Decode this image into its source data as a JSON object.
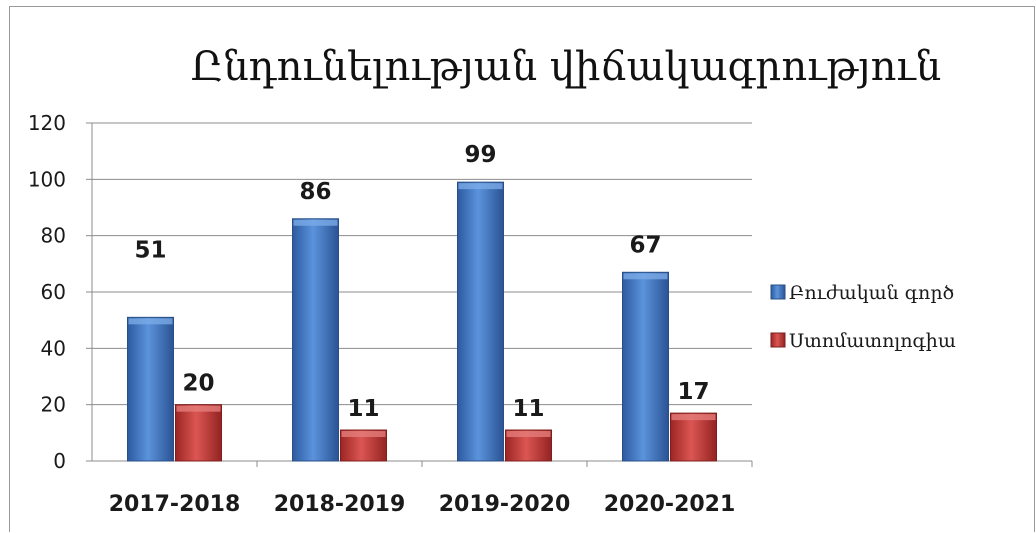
{
  "chart_data": {
    "type": "bar",
    "title": "Ընդունելության վիճակագրություն",
    "categories": [
      "2017-2018",
      "2018-2019",
      "2019-2020",
      "2020-2021"
    ],
    "series": [
      {
        "name": "Բուժական գործ",
        "values": [
          51,
          86,
          99,
          67
        ],
        "color": "#3f76c6"
      },
      {
        "name": "Ստոմատոլոգիա",
        "values": [
          20,
          11,
          11,
          17
        ],
        "color": "#c23a37"
      }
    ],
    "ylim": [
      0,
      120
    ],
    "yticks": [
      0,
      20,
      40,
      60,
      80,
      100,
      120
    ],
    "grid": true,
    "legend": "right",
    "data_labels": true
  }
}
